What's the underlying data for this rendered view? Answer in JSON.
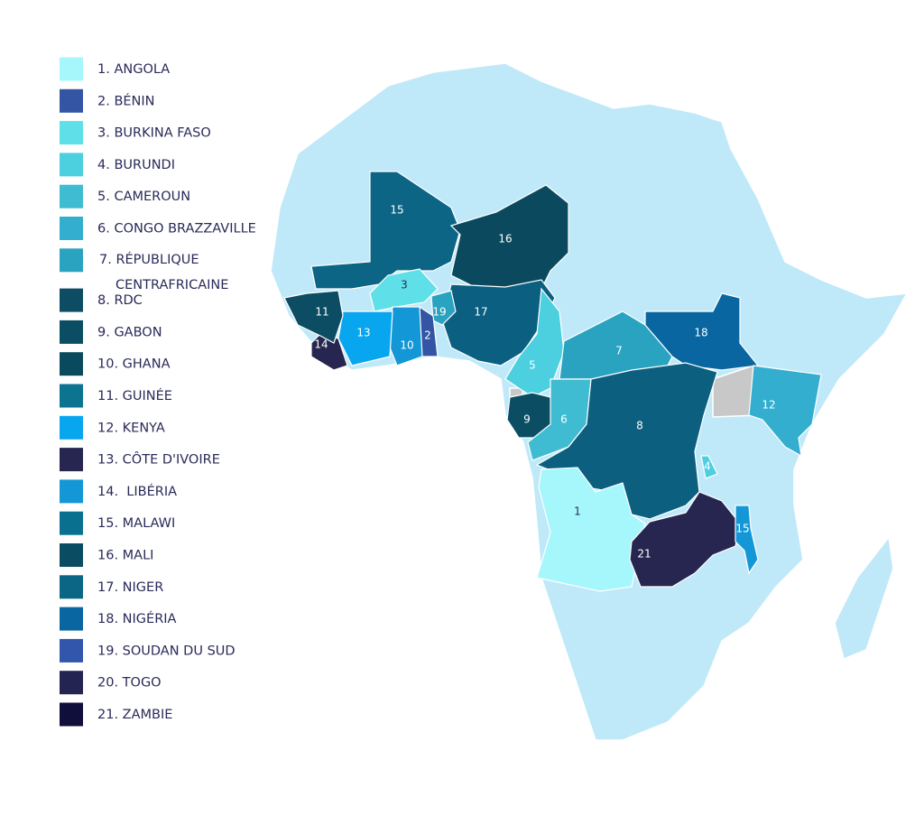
{
  "legend": [
    {
      "label": "1. ANGOLA",
      "color": "#a5f7fb"
    },
    {
      "label": "2. BÉNIN",
      "color": "#3454a4"
    },
    {
      "label": "3. BURKINA FASO",
      "color": "#5fe0e8"
    },
    {
      "label": "4. BURUNDI",
      "color": "#4ccfdf"
    },
    {
      "label": "5. CAMEROUN",
      "color": "#3fbcd2"
    },
    {
      "label": "6. CONGO BRAZZAVILLE",
      "color": "#33aecf"
    },
    {
      "lines": [
        "7. RÉPUBLIQUE",
        "CENTRAFRICAINE"
      ],
      "color": "#2aa3c1"
    },
    {
      "label": "8. RDC",
      "color": "#0d4d63"
    },
    {
      "label": "9. GABON",
      "color": "#0b4e63"
    },
    {
      "label": "10. GHANA",
      "color": "#0a4a5e"
    },
    {
      "label": "11. GUINÉE",
      "color": "#0c7390"
    },
    {
      "label": "12. KENYA",
      "color": "#09a6f0"
    },
    {
      "label": "13. CÔTE D'IVOIRE",
      "color": "#272650"
    },
    {
      "label": "14.  LIBÉRIA",
      "color": "#1497d6"
    },
    {
      "label": "15. MALAWI",
      "color": "#09708f"
    },
    {
      "label": "16. MALI",
      "color": "#0a4d62"
    },
    {
      "label": "17. NIGER",
      "color": "#0b6585"
    },
    {
      "label": "18. NIGÉRIA",
      "color": "#0a66a0"
    },
    {
      "label": "19. SOUDAN DU SUD",
      "color": "#3356ad"
    },
    {
      "label": "20. TOGO",
      "color": "#242452"
    },
    {
      "label": "21. ZAMBIE",
      "color": "#100e3a"
    }
  ],
  "map": {
    "regions": [
      {
        "label": "15",
        "color": "#0c6585"
      },
      {
        "label": "16",
        "color": "#0b4a5e"
      },
      {
        "label": "17",
        "color": "#0b5f80"
      },
      {
        "label": "3",
        "color": "#5fe0e8"
      },
      {
        "label": "19",
        "color": "#2aa3c1"
      },
      {
        "label": "2",
        "color": "#3454a4"
      },
      {
        "label": "10",
        "color": "#1497d6"
      },
      {
        "label": "13",
        "color": "#09a6f0"
      },
      {
        "label": "14",
        "color": "#272650"
      },
      {
        "label": "11",
        "color": "#0d4d63"
      },
      {
        "label": "5",
        "color": "#4ccfdf"
      },
      {
        "label": "7",
        "color": "#2aa3c1"
      },
      {
        "label": "18",
        "color": "#0a66a0"
      },
      {
        "label": "12",
        "color": "#33aecf"
      },
      {
        "label": "9",
        "color": "#0b4e63"
      },
      {
        "label": "6",
        "color": "#3fbcd2"
      },
      {
        "label": "8",
        "color": "#0c5f7e"
      },
      {
        "label": "4",
        "color": "#4ccfdf"
      },
      {
        "label": "1",
        "color": "#a5f7fb"
      },
      {
        "label": "21",
        "color": "#272650"
      },
      {
        "label": "15",
        "color": "#1497d6"
      }
    ]
  }
}
